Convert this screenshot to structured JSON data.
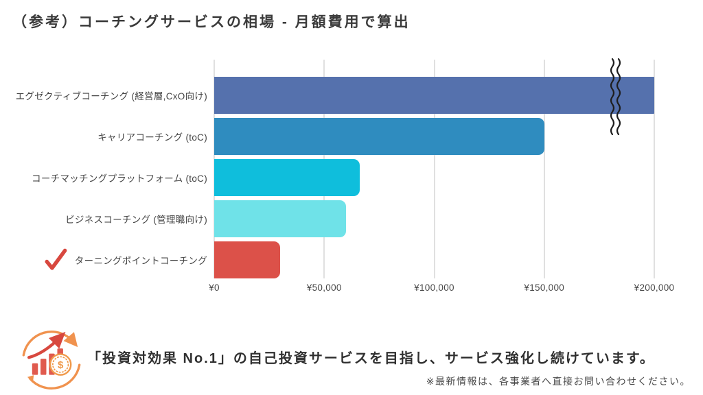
{
  "title": "（参考）コーチングサービスの相場 - 月額費用で算出",
  "chart_data": {
    "type": "bar",
    "orientation": "horizontal",
    "title": "（参考）コーチングサービスの相場 - 月額費用で算出",
    "categories": [
      "エグゼクティブコーチング (経営層,CxO向け)",
      "キャリアコーチング (toC)",
      "コーチマッチングプラットフォーム (toC)",
      "ビジネスコーチング (管理職向け)",
      "ターニングポイントコーチング"
    ],
    "values": [
      200000,
      150000,
      66000,
      60000,
      30000
    ],
    "bar_colors": [
      "#5571AD",
      "#2F8CBF",
      "#0FBEDC",
      "#6FE2E8",
      "#DC5149"
    ],
    "x_ticks": [
      "¥0",
      "¥50,000",
      "¥100,000",
      "¥150,000",
      "¥200,000"
    ],
    "x_tick_values": [
      0,
      50000,
      100000,
      150000,
      200000
    ],
    "xlim": [
      0,
      200000
    ],
    "grid": true,
    "legend": false,
    "axis_break_row": 0,
    "axis_break_note": "top bar exceeds ¥200,000 (wavy break marks on axis)",
    "highlight_row": 4,
    "highlight_mark": "red-checkmark"
  },
  "footer": {
    "message": "「投資対効果 No.1」の自己投資サービスを目指し、サービス強化し続けています。",
    "note": "※最新情報は、各事業者へ直接お問い合わせください。"
  },
  "colors": {
    "accent_orange": "#F0924E",
    "accent_red": "#D8483F",
    "coin_orange": "#F09A4C",
    "grid": "#E0E0E0",
    "title_text": "#3A3A3A",
    "label_text": "#434343",
    "break_mark": "#1E1E1E"
  },
  "icons": {
    "footer_icon": "roi-growth-icon (circular arrows, rising bar chart, dollar coin)",
    "row_mark": "red-check-icon"
  }
}
